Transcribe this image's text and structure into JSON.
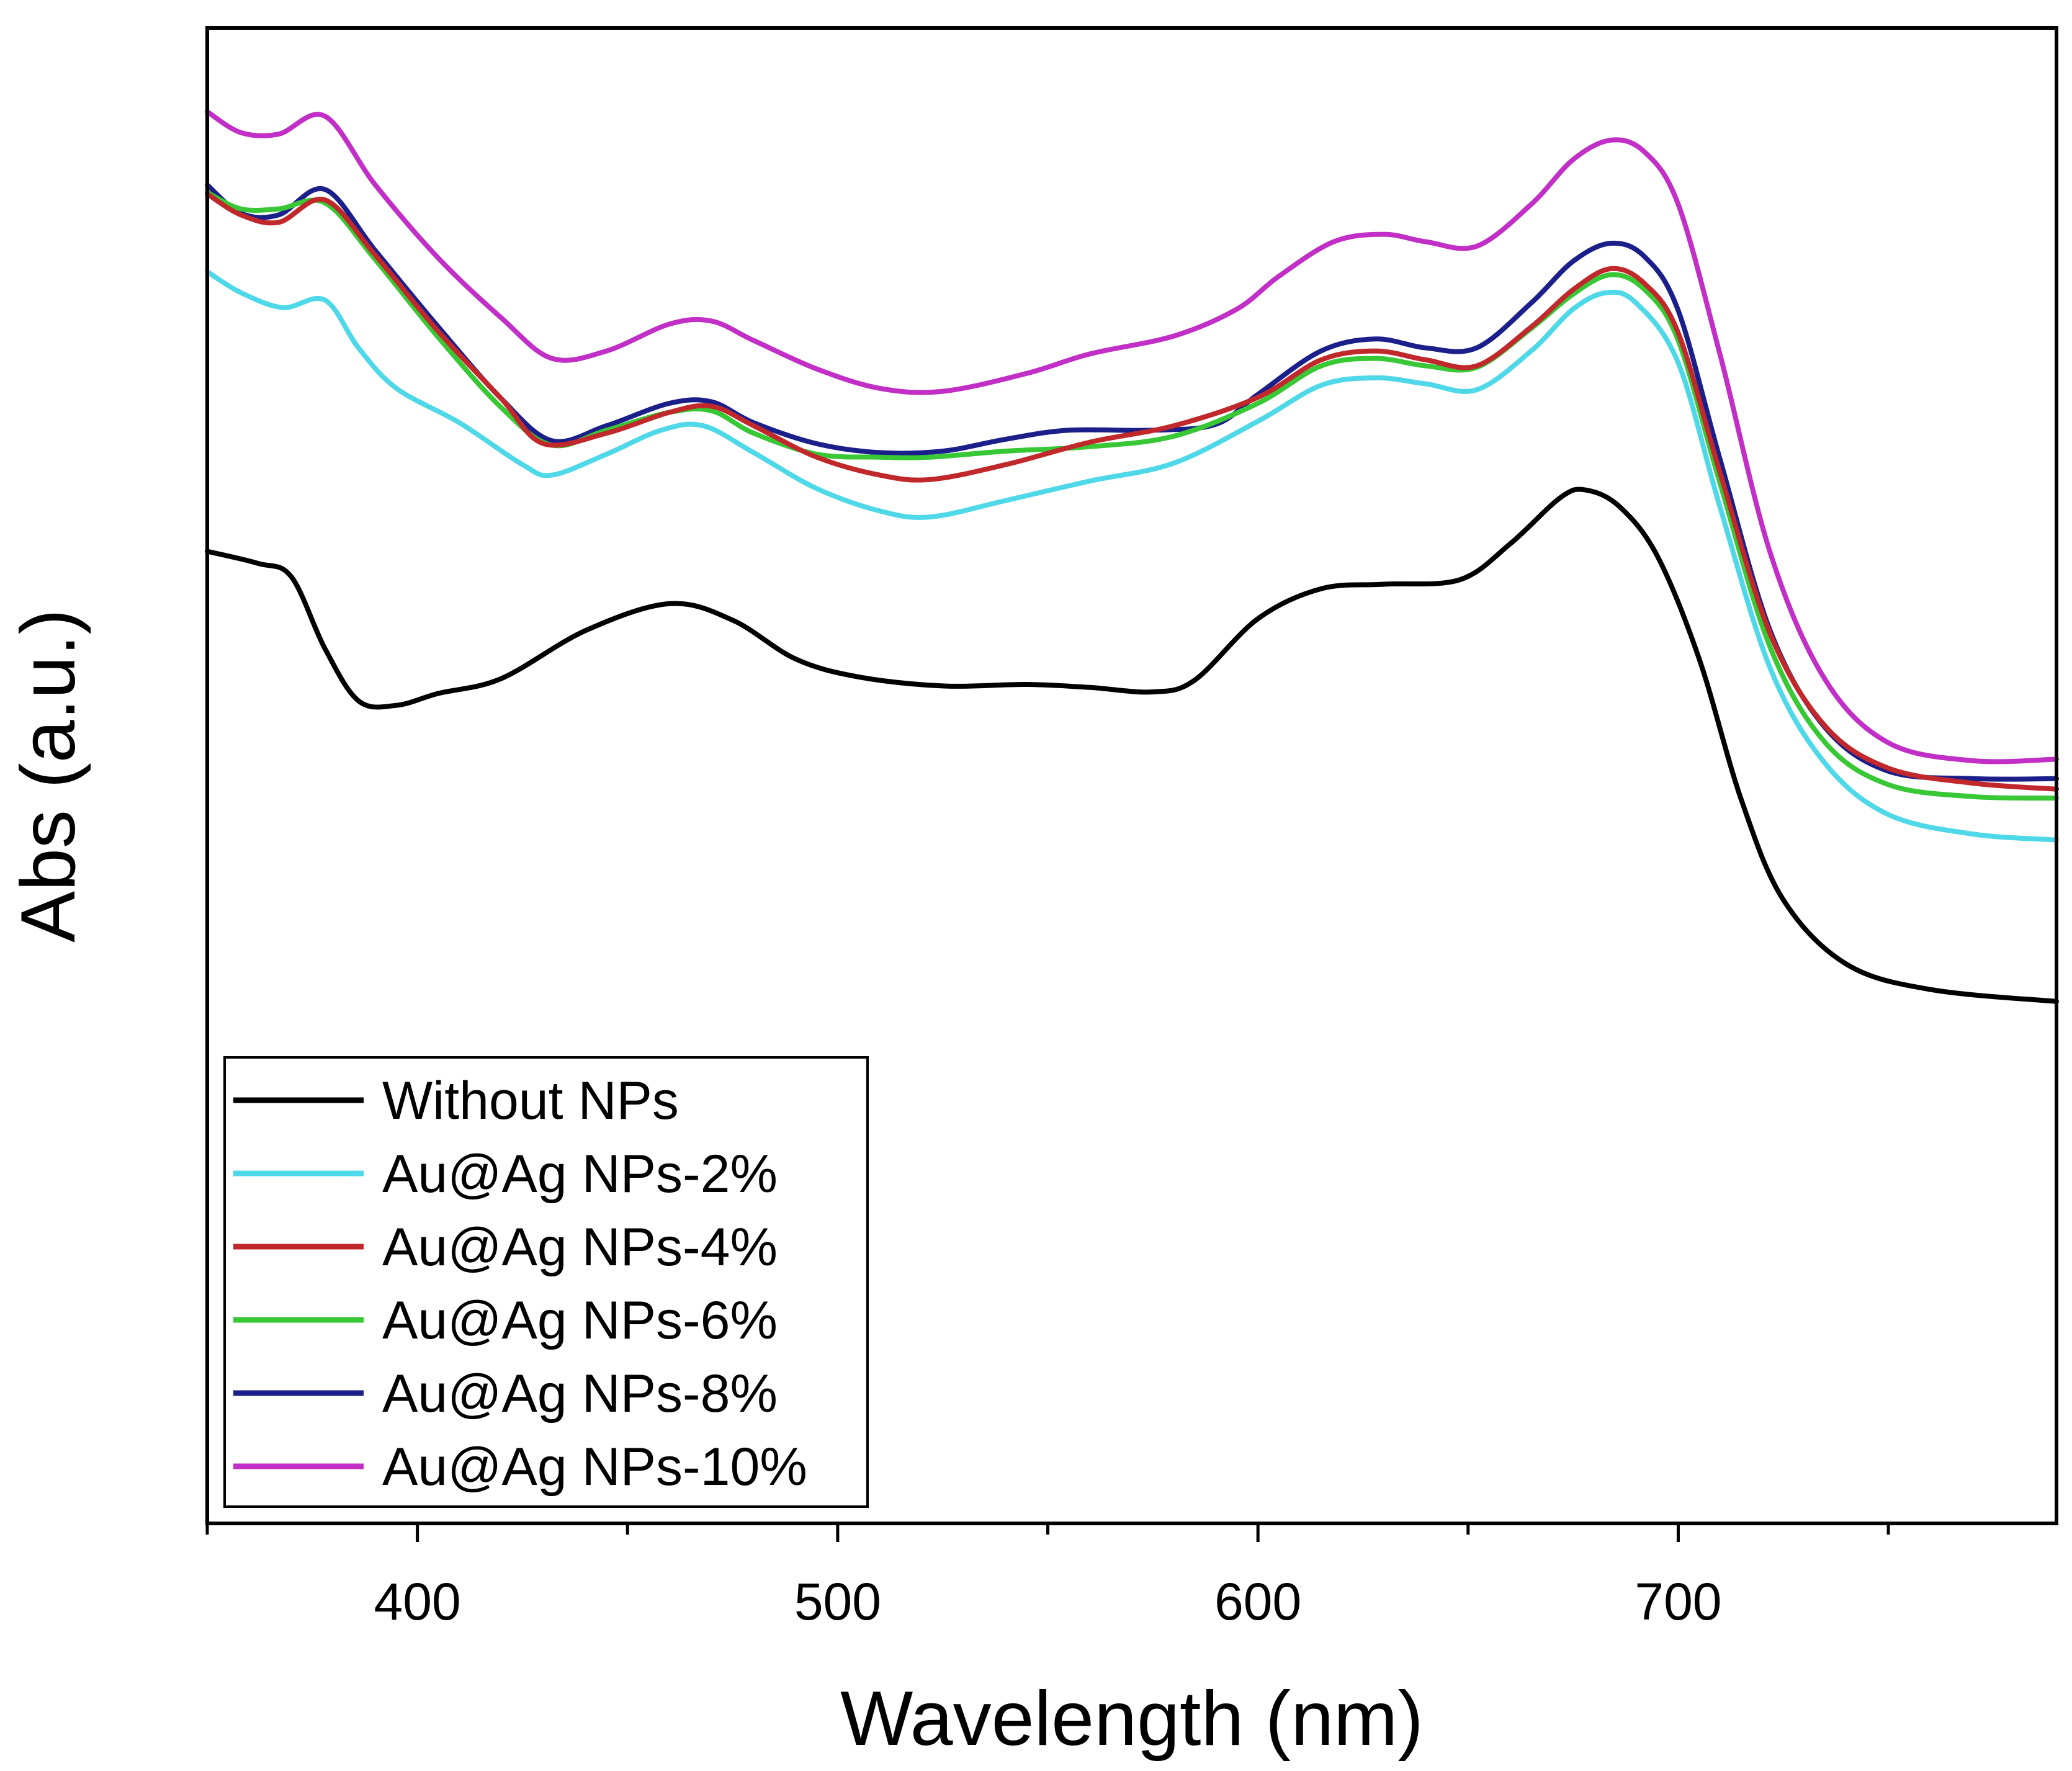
{
  "chart_data": {
    "type": "line",
    "title": "",
    "xlabel": "Wavelength (nm)",
    "ylabel": "Abs (a.u.)",
    "xlim": [
      350,
      790
    ],
    "ylim": [
      0,
      100
    ],
    "x_ticks": [
      400,
      500,
      600,
      700
    ],
    "x_tick_labels": [
      "400",
      "500",
      "600",
      "700"
    ],
    "y_ticks_shown": false,
    "grid": false,
    "legend_position": "bottom-left",
    "series": [
      {
        "name": "Without NPs",
        "color": "#000000",
        "x": [
          350,
          362,
          370,
          378,
          386,
          395,
          405,
          420,
          440,
          460,
          475,
          490,
          505,
          525,
          545,
          560,
          575,
          585,
          600,
          615,
          630,
          648,
          660,
          672,
          678,
          686,
          695,
          705,
          715,
          725,
          740,
          760,
          790
        ],
        "y": [
          65.0,
          64.2,
          63.3,
          58.5,
          55.0,
          54.7,
          55.5,
          56.5,
          59.7,
          61.5,
          60.4,
          57.8,
          56.6,
          56.0,
          56.1,
          55.9,
          55.6,
          56.4,
          60.5,
          62.5,
          62.8,
          63.1,
          65.5,
          68.6,
          69.1,
          68.0,
          64.7,
          57.8,
          48.4,
          41.7,
          37.4,
          35.7,
          34.9
        ]
      },
      {
        "name": "Au@Ag NPs-2%",
        "color": "#4FD8E8",
        "x": [
          350,
          358,
          368,
          378,
          386,
          395,
          410,
          425,
          432,
          445,
          458,
          468,
          480,
          495,
          510,
          522,
          540,
          560,
          580,
          600,
          615,
          628,
          640,
          652,
          665,
          675,
          683,
          690,
          700,
          710,
          722,
          735,
          750,
          770,
          790
        ],
        "y": [
          83.7,
          82.3,
          81.3,
          81.8,
          78.6,
          75.9,
          73.6,
          70.8,
          70.1,
          71.5,
          73.1,
          73.4,
          71.6,
          69.2,
          67.7,
          67.3,
          68.4,
          69.7,
          70.9,
          73.7,
          76.1,
          76.6,
          76.2,
          75.8,
          78.4,
          81.2,
          82.3,
          81.6,
          77.6,
          67.9,
          57.1,
          50.8,
          47.4,
          46.1,
          45.7
        ]
      },
      {
        "name": "Au@Ag NPs-4%",
        "color": "#C0282B",
        "x": [
          350,
          358,
          367,
          378,
          390,
          405,
          420,
          430,
          445,
          460,
          470,
          480,
          495,
          510,
          522,
          540,
          560,
          580,
          600,
          615,
          628,
          640,
          652,
          665,
          675,
          684,
          692,
          700,
          710,
          722,
          735,
          750,
          770,
          790
        ],
        "y": [
          88.9,
          87.5,
          87.0,
          88.5,
          84.8,
          79.7,
          75.2,
          72.2,
          72.9,
          74.3,
          74.7,
          73.4,
          71.3,
          70.1,
          69.8,
          70.8,
          72.3,
          73.4,
          75.3,
          77.8,
          78.4,
          77.8,
          77.4,
          80.0,
          82.5,
          83.9,
          82.9,
          79.6,
          70.2,
          59.4,
          53.3,
          50.5,
          49.5,
          49.1
        ]
      },
      {
        "name": "Au@Ag NPs-6%",
        "color": "#38C735",
        "x": [
          350,
          358,
          367,
          378,
          390,
          405,
          420,
          432,
          445,
          460,
          470,
          480,
          495,
          510,
          522,
          540,
          560,
          580,
          600,
          615,
          628,
          640,
          652,
          665,
          675,
          684,
          692,
          700,
          710,
          722,
          735,
          750,
          770,
          790
        ],
        "y": [
          89.0,
          87.9,
          87.9,
          88.3,
          84.5,
          79.3,
          74.6,
          72.1,
          73.1,
          74.3,
          74.4,
          72.9,
          71.5,
          71.3,
          71.3,
          71.7,
          72.0,
          72.7,
          74.9,
          77.4,
          77.9,
          77.4,
          77.3,
          79.9,
          82.2,
          83.5,
          82.5,
          79.1,
          69.5,
          58.5,
          52.2,
          49.4,
          48.6,
          48.5
        ]
      },
      {
        "name": "Au@Ag NPs-8%",
        "color": "#1B1F8A",
        "x": [
          350,
          358,
          367,
          378,
          390,
          405,
          420,
          432,
          445,
          460,
          470,
          480,
          495,
          510,
          525,
          540,
          555,
          575,
          590,
          600,
          615,
          628,
          640,
          652,
          665,
          675,
          684,
          692,
          700,
          710,
          722,
          735,
          750,
          770,
          790
        ],
        "y": [
          89.5,
          87.6,
          87.5,
          89.2,
          85.1,
          80.0,
          75.2,
          72.4,
          73.4,
          74.9,
          75.0,
          73.6,
          72.2,
          71.6,
          71.7,
          72.5,
          73.1,
          73.1,
          73.5,
          75.5,
          78.4,
          79.2,
          78.6,
          78.6,
          81.6,
          84.4,
          85.6,
          84.7,
          81.1,
          71.1,
          59.6,
          53.2,
          50.3,
          49.8,
          49.8
        ]
      },
      {
        "name": "Au@Ag NPs-10%",
        "color": "#C12FC6",
        "x": [
          350,
          358,
          367,
          378,
          390,
          405,
          420,
          432,
          445,
          460,
          470,
          480,
          495,
          510,
          525,
          545,
          560,
          580,
          595,
          605,
          618,
          630,
          640,
          652,
          665,
          675,
          684,
          692,
          700,
          710,
          722,
          735,
          750,
          770,
          790
        ],
        "y": [
          94.4,
          93.0,
          92.9,
          94.1,
          89.5,
          84.6,
          80.6,
          77.9,
          78.4,
          80.2,
          80.4,
          79.1,
          77.2,
          75.9,
          75.7,
          76.9,
          78.2,
          79.4,
          81.2,
          83.4,
          85.7,
          86.2,
          85.7,
          85.4,
          88.2,
          91.2,
          92.5,
          91.7,
          88.2,
          78.1,
          64.8,
          56.4,
          52.2,
          51.0,
          51.1
        ]
      }
    ]
  }
}
